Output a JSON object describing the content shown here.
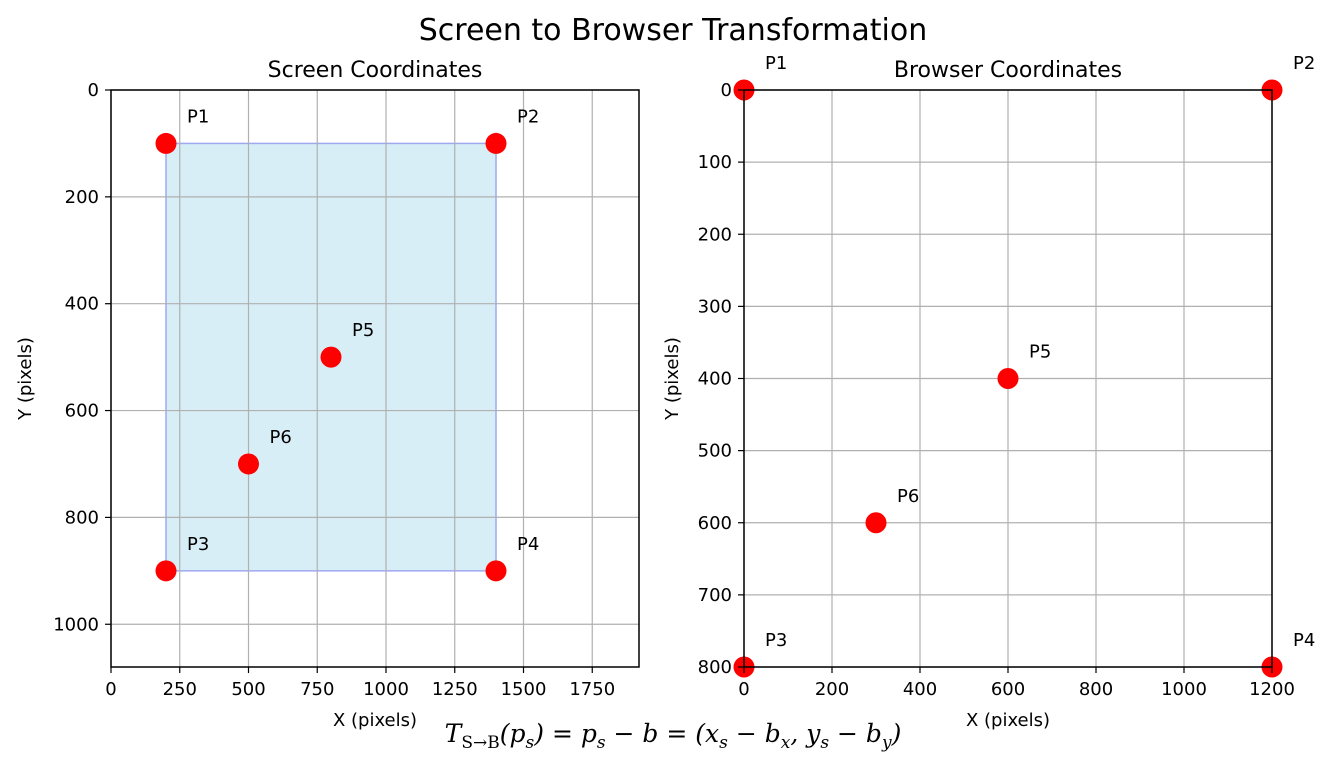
{
  "figure": {
    "title": "Screen to Browser Transformation",
    "formula": {
      "lead": "T",
      "lead_sub": "S→B",
      "body": "(p",
      "body_sub": "s",
      "eq1": ") = p",
      "eq1_sub": "s",
      "minus": " − b = (x",
      "x_sub": "s",
      "mid": " − b",
      "bx_sub": "x",
      "comma": ", y",
      "y_sub": "s",
      "mid2": " − b",
      "by_sub": "y",
      "close": ")"
    }
  },
  "chart_data": [
    {
      "type": "scatter",
      "title": "Screen Coordinates",
      "xlabel": "X (pixels)",
      "ylabel": "Y (pixels)",
      "xlim": [
        0,
        1920
      ],
      "ylim": [
        1080,
        0
      ],
      "y_inverted": true,
      "grid": true,
      "xticks": [
        0,
        250,
        500,
        750,
        1000,
        1250,
        1500,
        1750
      ],
      "yticks": [
        0,
        200,
        400,
        600,
        800,
        1000
      ],
      "rectangle": {
        "x": [
          200,
          1400
        ],
        "y": [
          100,
          900
        ],
        "fill": "#d8eef6",
        "edge": "#a0a8f0"
      },
      "point_color": "#ff0000",
      "points": [
        {
          "label": "P1",
          "x": 200,
          "y": 100
        },
        {
          "label": "P2",
          "x": 1400,
          "y": 100
        },
        {
          "label": "P3",
          "x": 200,
          "y": 900
        },
        {
          "label": "P4",
          "x": 1400,
          "y": 900
        },
        {
          "label": "P5",
          "x": 800,
          "y": 500
        },
        {
          "label": "P6",
          "x": 500,
          "y": 700
        }
      ]
    },
    {
      "type": "scatter",
      "title": "Browser Coordinates",
      "xlabel": "X (pixels)",
      "ylabel": "Y (pixels)",
      "xlim": [
        0,
        1200
      ],
      "ylim": [
        800,
        0
      ],
      "y_inverted": true,
      "grid": true,
      "xticks": [
        0,
        200,
        400,
        600,
        800,
        1000,
        1200
      ],
      "yticks": [
        0,
        100,
        200,
        300,
        400,
        500,
        600,
        700,
        800
      ],
      "point_color": "#ff0000",
      "points": [
        {
          "label": "P1",
          "x": 0,
          "y": 0
        },
        {
          "label": "P2",
          "x": 1200,
          "y": 0
        },
        {
          "label": "P3",
          "x": 0,
          "y": 800
        },
        {
          "label": "P4",
          "x": 1200,
          "y": 800
        },
        {
          "label": "P5",
          "x": 600,
          "y": 400
        },
        {
          "label": "P6",
          "x": 300,
          "y": 600
        }
      ]
    }
  ]
}
